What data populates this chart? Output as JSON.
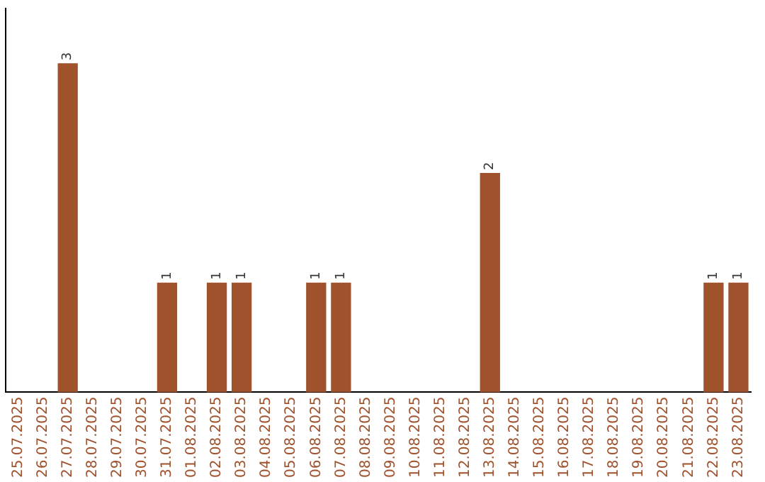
{
  "chart_data": {
    "type": "bar",
    "categories": [
      "25.07.2025",
      "26.07.2025",
      "27.07.2025",
      "28.07.2025",
      "29.07.2025",
      "30.07.2025",
      "31.07.2025",
      "01.08.2025",
      "02.08.2025",
      "03.08.2025",
      "04.08.2025",
      "05.08.2025",
      "06.08.2025",
      "07.08.2025",
      "08.08.2025",
      "09.08.2025",
      "10.08.2025",
      "11.08.2025",
      "12.08.2025",
      "13.08.2025",
      "14.08.2025",
      "15.08.2025",
      "16.08.2025",
      "17.08.2025",
      "18.08.2025",
      "19.08.2025",
      "20.08.2025",
      "21.08.2025",
      "22.08.2025",
      "23.08.2025"
    ],
    "values": [
      0,
      0,
      3,
      0,
      0,
      0,
      1,
      0,
      1,
      1,
      0,
      0,
      1,
      1,
      0,
      0,
      0,
      0,
      0,
      2,
      0,
      0,
      0,
      0,
      0,
      0,
      0,
      0,
      1,
      1
    ],
    "value_labels": [
      null,
      null,
      "3",
      null,
      null,
      null,
      "1",
      null,
      "1",
      "1",
      null,
      null,
      "1",
      "1",
      null,
      null,
      null,
      null,
      null,
      "2",
      null,
      null,
      null,
      null,
      null,
      null,
      null,
      null,
      "1",
      "1"
    ],
    "color": "#a0522d",
    "tick_labels": "x",
    "grid": false,
    "legend": false
  }
}
